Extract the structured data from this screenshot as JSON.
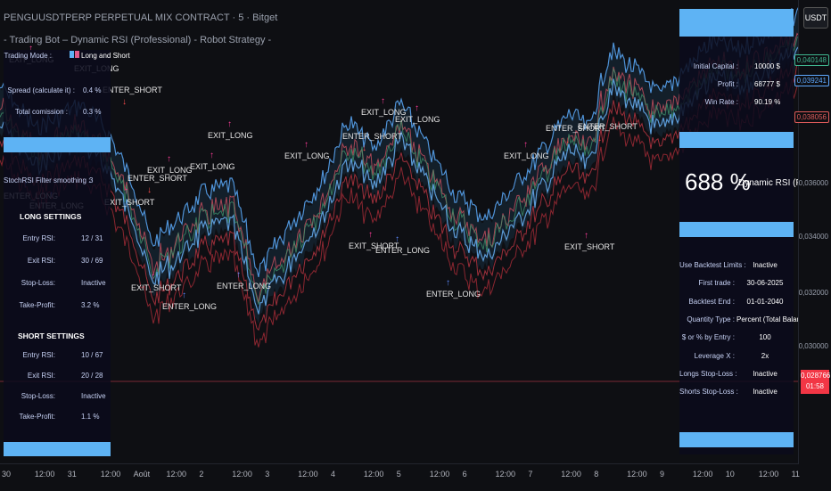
{
  "header": {
    "symbol_line": "PENGUUSDTPERP PERPETUAL MIX CONTRACT · 5 · Bitget",
    "strategy_line": "- Trading Bot – Dynamic RSI (Professional) - Robot Strategy -"
  },
  "currency_button": "USDT",
  "left_panel": {
    "trading_mode_label": "Trading Mode :",
    "trading_mode_value": "Long and Short",
    "spread_label": "Spread (calculate it) :",
    "spread_value": "0.4 %",
    "commission_label": "Total comission :",
    "commission_value": "0.3 %",
    "stochrsi_label": "StochRSI Filter smoothing :",
    "stochrsi_value": "3",
    "long_title": "LONG SETTINGS",
    "long_rows": [
      {
        "label": "Entry RSI:",
        "value": "12 / 31"
      },
      {
        "label": "Exit RSI:",
        "value": "30 / 69"
      },
      {
        "label": "Stop-Loss:",
        "value": "Inactive"
      },
      {
        "label": "Take-Profit:",
        "value": "3.2 %"
      }
    ],
    "short_title": "SHORT SETTINGS",
    "short_rows": [
      {
        "label": "Entry RSI:",
        "value": "10 / 67"
      },
      {
        "label": "Exit RSI:",
        "value": "20 / 28"
      },
      {
        "label": "Stop-Loss:",
        "value": "Inactive"
      },
      {
        "label": "Take-Profit:",
        "value": "1.1 %"
      }
    ]
  },
  "right_panel": {
    "capital_rows": [
      {
        "label": "Initial Capital :",
        "value": "10000 $"
      },
      {
        "label": "Profit :",
        "value": "68777 $"
      },
      {
        "label": "Win Rate :",
        "value": "90.19 %"
      }
    ],
    "big_percent": "688 %",
    "strategy_name": "Dynamic RSI (Pro)",
    "settings_rows": [
      {
        "label": "Use Backtest Limits :",
        "value": "Inactive"
      },
      {
        "label": "First trade :",
        "value": "30-06-2025"
      },
      {
        "label": "Backtest End :",
        "value": "01-01-2040"
      },
      {
        "label": "Quantity Type :",
        "value": "Percent (Total Balance)"
      },
      {
        "label": "$ or % by Entry :",
        "value": "100"
      },
      {
        "label": "Leverage X :",
        "value": "2x"
      },
      {
        "label": "Longs Stop-Loss :",
        "value": "Inactive"
      },
      {
        "label": "Shorts Stop-Loss :",
        "value": "Inactive"
      }
    ]
  },
  "price_axis": {
    "ticks": [
      "0,036000",
      "0,034000",
      "0,032000",
      "0,030000"
    ],
    "tags": [
      {
        "text": "0,040148",
        "color": "#3fb58f"
      },
      {
        "text": "0,039241",
        "color": "#5ea9ff"
      },
      {
        "text": "0,038056",
        "color": "#e05b5b"
      }
    ],
    "current_price": "0,028766",
    "countdown": "01:58"
  },
  "time_axis": [
    "30",
    "12:00",
    "31",
    "12:00",
    "Août",
    "12:00",
    "2",
    "12:00",
    "3",
    "12:00",
    "4",
    "12:00",
    "5",
    "12:00",
    "6",
    "12:00",
    "7",
    "12:00",
    "8",
    "12:00",
    "9",
    "12:00",
    "10",
    "12:00",
    "11"
  ],
  "trade_labels": [
    "EXIT_LONG",
    "EXIT_LONG",
    "ENTER_SHORT",
    "ENTER_LONG",
    "ENTER_LONG",
    "EXIT_SHORT",
    "ENTER_SHORT",
    "EXIT_LONG",
    "EXIT_LONG",
    "EXIT_SHORT",
    "ENTER_LONG",
    "ENTER_LONG",
    "EXIT_LONG",
    "EXIT_LONG",
    "ENTER_SHORT",
    "EXIT_LONG",
    "EXIT_LONG",
    "EXIT_SHORT",
    "ENTER_LONG",
    "ENTER_LONG",
    "EXIT_LONG",
    "ENTER_SHORT",
    "ENTER_SHORT",
    "EXIT_SHORT"
  ]
}
